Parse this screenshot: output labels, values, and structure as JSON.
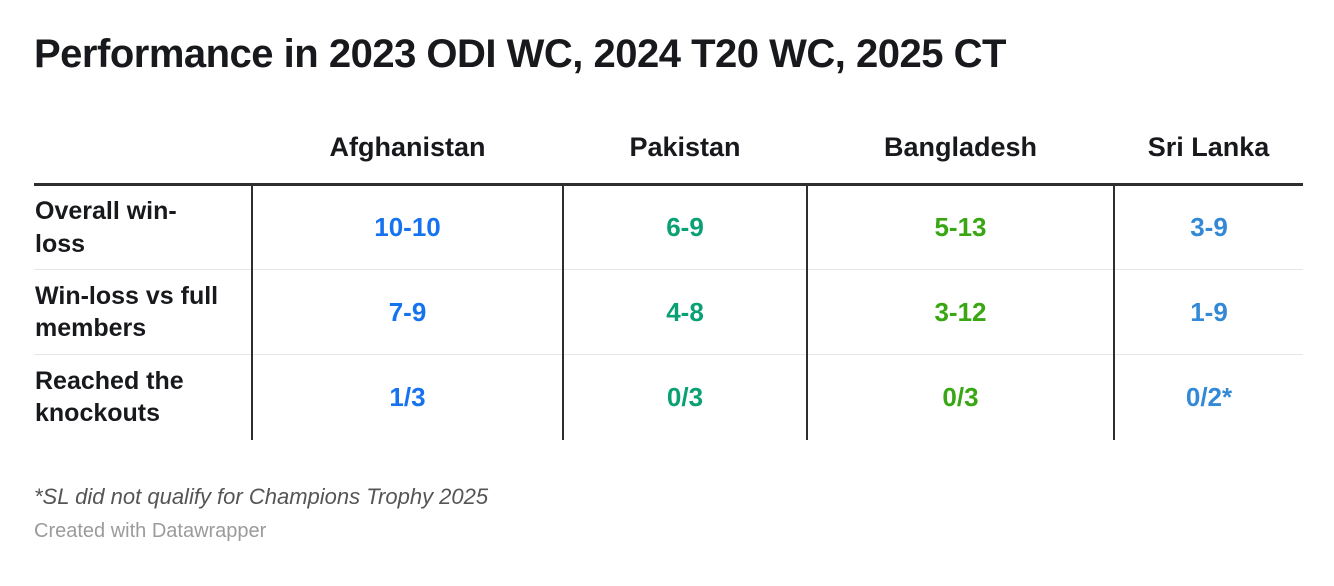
{
  "title": "Performance in 2023 ODI WC, 2024 T20 WC, 2025 CT",
  "footnote": "*SL did not qualify for Champions Trophy 2025",
  "attribution": "Created with Datawrapper",
  "colors": {
    "afghanistan": "#1673f0",
    "pakistan": "#09a173",
    "bangladesh": "#38a713",
    "sri_lanka": "#3489d6"
  },
  "chart_data": {
    "type": "table",
    "title": "Performance in 2023 ODI WC, 2024 T20 WC, 2025 CT",
    "columns": [
      "Afghanistan",
      "Pakistan",
      "Bangladesh",
      "Sri Lanka"
    ],
    "rows": [
      {
        "label": "Overall win-loss",
        "values": [
          "10-10",
          "6-9",
          "5-13",
          "3-9"
        ]
      },
      {
        "label": "Win-loss vs full members",
        "values": [
          "7-9",
          "4-8",
          "3-12",
          "1-9"
        ]
      },
      {
        "label": "Reached the knockouts",
        "values": [
          "1/3",
          "0/3",
          "0/3",
          "0/2*"
        ]
      }
    ],
    "footnote": "*SL did not qualify for Champions Trophy 2025"
  }
}
